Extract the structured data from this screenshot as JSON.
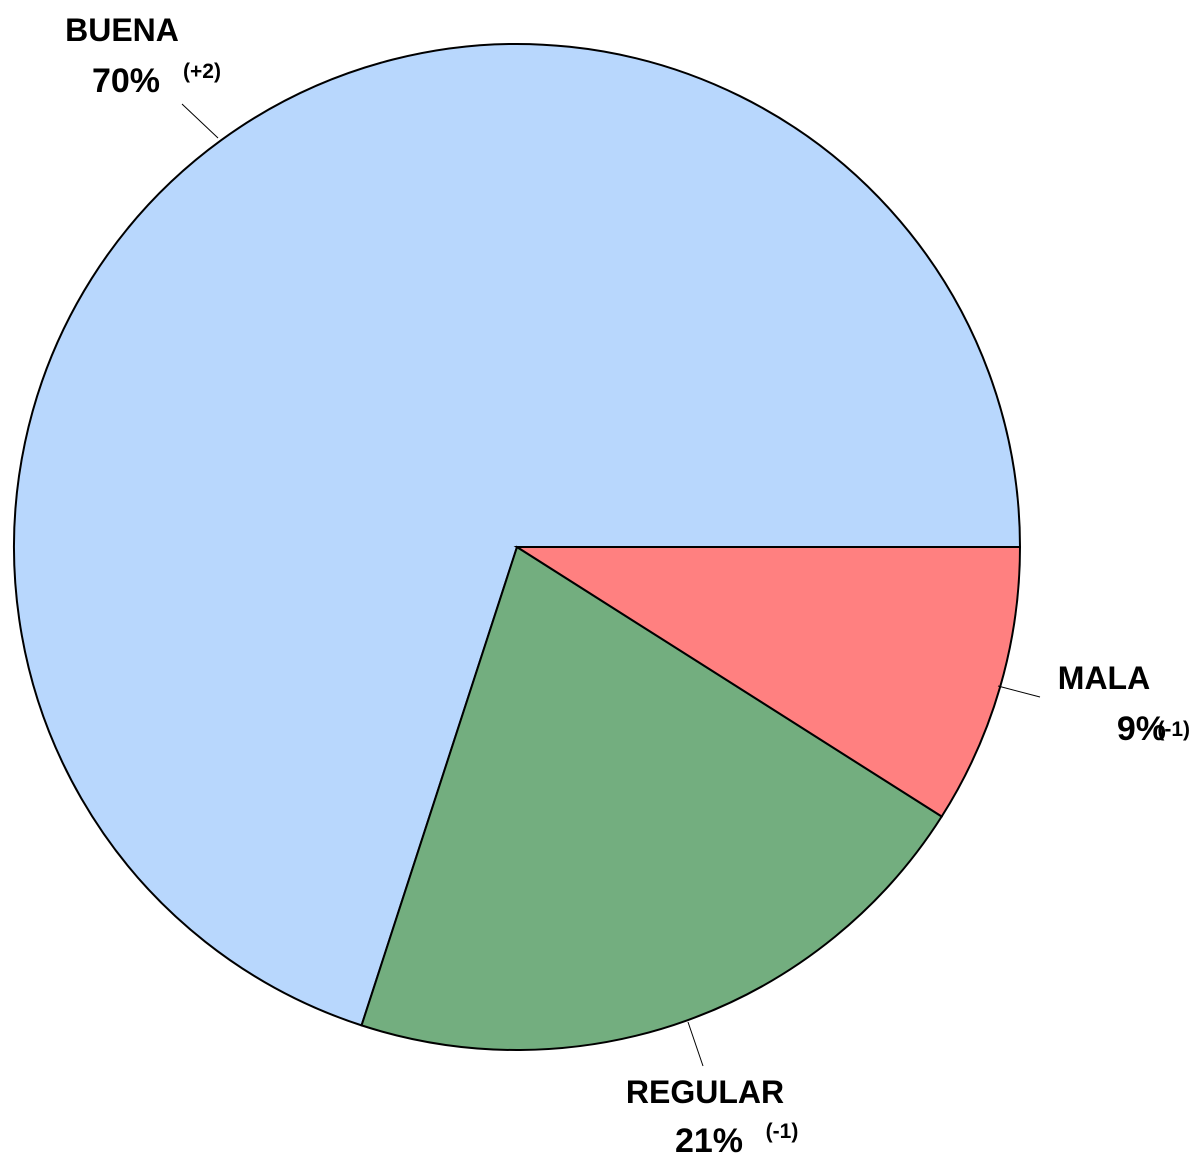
{
  "chart_data": {
    "type": "pie",
    "categories": [
      "BUENA",
      "REGULAR",
      "MALA"
    ],
    "values": [
      70,
      21,
      9
    ],
    "value_labels": [
      "70%",
      "21%",
      "9%"
    ],
    "changes": [
      "(+2)",
      "(-1)",
      "(-1)"
    ],
    "colors": [
      "#b8d7fd",
      "#73ae7f",
      "#ff8080"
    ]
  }
}
